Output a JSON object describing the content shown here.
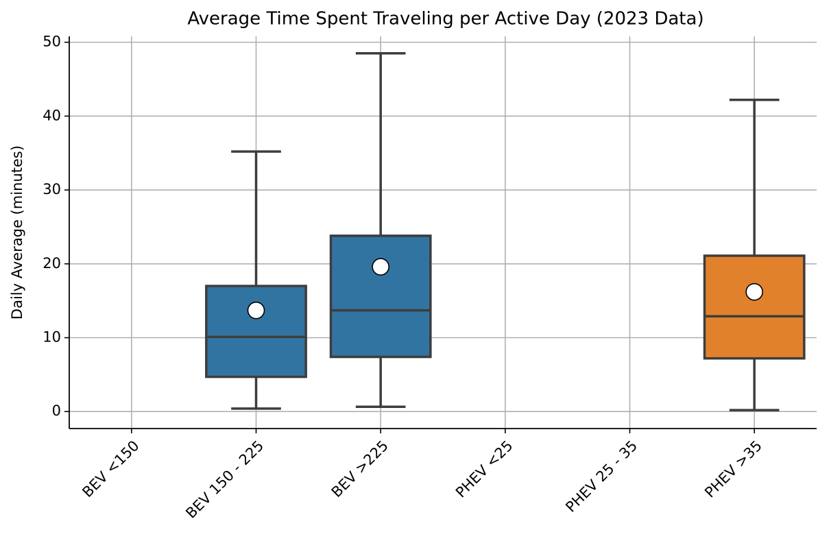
{
  "chart_data": {
    "type": "box",
    "title": "Average Time Spent Traveling per Active Day (2023 Data)",
    "ylabel": "Daily Average (minutes)",
    "categories": [
      "BEV <150",
      "BEV 150 - 225",
      "BEV >225",
      "PHEV <25",
      "PHEV 25 - 35",
      "PHEV >35"
    ],
    "boxes": [
      null,
      {
        "low": 0.4,
        "q1": 4.7,
        "median": 10.1,
        "q3": 17.0,
        "high": 35.2,
        "mean": 13.7,
        "color": "#3274a1"
      },
      {
        "low": 0.65,
        "q1": 7.4,
        "median": 13.7,
        "q3": 23.8,
        "high": 48.5,
        "mean": 19.6,
        "color": "#3274a1"
      },
      null,
      null,
      {
        "low": 0.2,
        "q1": 7.2,
        "median": 12.9,
        "q3": 21.1,
        "high": 42.2,
        "mean": 16.2,
        "color": "#e1812c"
      }
    ],
    "ylim": [
      -2.3,
      50.8
    ],
    "yticks": [
      0,
      10,
      20,
      30,
      40,
      50
    ],
    "grid": true
  }
}
